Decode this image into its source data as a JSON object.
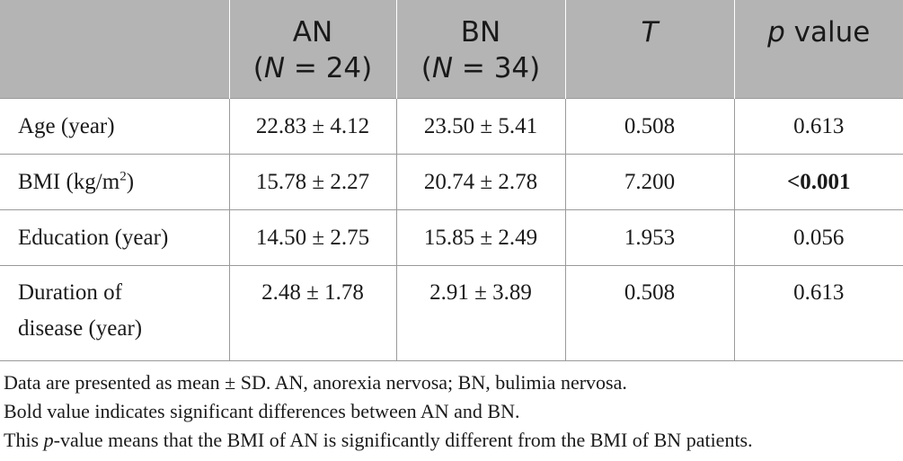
{
  "headers": {
    "an": {
      "line1": "AN",
      "n_prefix": "(",
      "n_var": "N",
      "n_suffix": " = 24)"
    },
    "bn": {
      "line1": "BN",
      "n_prefix": "(",
      "n_var": "N",
      "n_suffix": " = 34)"
    },
    "t": "T",
    "p": {
      "var": "p",
      "rest": " value"
    }
  },
  "rows": [
    {
      "label": "Age (year)",
      "an": "22.83 ± 4.12",
      "bn": "23.50 ± 5.41",
      "t": "0.508",
      "p": "0.613"
    },
    {
      "label_base": "BMI (kg/m",
      "label_sup": "2",
      "label_end": ")",
      "an": "15.78 ± 2.27",
      "bn": "20.74 ± 2.78",
      "t": "7.200",
      "p": "<0.001"
    },
    {
      "label": "Education (year)",
      "an": "14.50 ± 2.75",
      "bn": "15.85 ± 2.49",
      "t": "1.953",
      "p": "0.056"
    },
    {
      "label_line1": "Duration of",
      "label_line2": "disease (year)",
      "an": "2.48 ± 1.78",
      "bn": "2.91 ± 3.89",
      "t": "0.508",
      "p": "0.613"
    }
  ],
  "notes": {
    "line1": "Data are presented as mean ± SD. AN, anorexia nervosa; BN, bulimia nervosa.",
    "line2": "Bold value indicates significant differences between AN and BN.",
    "line3_this": "This ",
    "line3_p": "p",
    "line3_rest": "-value means that the BMI of AN is significantly different from the BMI of BN patients."
  }
}
